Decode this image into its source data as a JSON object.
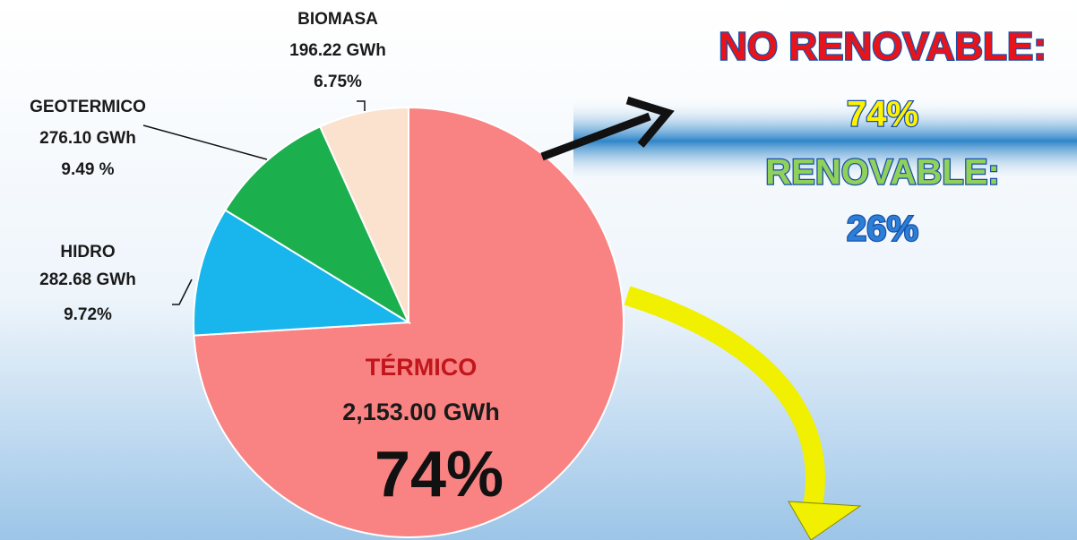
{
  "chart_data": {
    "type": "pie",
    "categories": [
      "TÉRMICO",
      "HIDRO",
      "GEOTERMICO",
      "BIOMASA"
    ],
    "energy_labels": [
      "2,153.00 GWh",
      "282.68 GWh",
      "276.10 GWh",
      "196.22 GWh"
    ],
    "values": [
      74,
      9.72,
      9.49,
      6.75
    ],
    "value_labels": [
      "74%",
      "9.72%",
      "9.49 %",
      "6.75%"
    ],
    "colors": [
      "#f98282",
      "#19b6ee",
      "#1caf4e",
      "#fbe2cf"
    ],
    "annotations": [
      {
        "text": "NO RENOVABLE:",
        "color": "#e8141b"
      },
      {
        "text": "74%",
        "color": "#fff200"
      },
      {
        "text": "RENOVABLE:",
        "color": "#8fd15a"
      },
      {
        "text": "26%",
        "color": "#2c7fd6"
      }
    ]
  }
}
